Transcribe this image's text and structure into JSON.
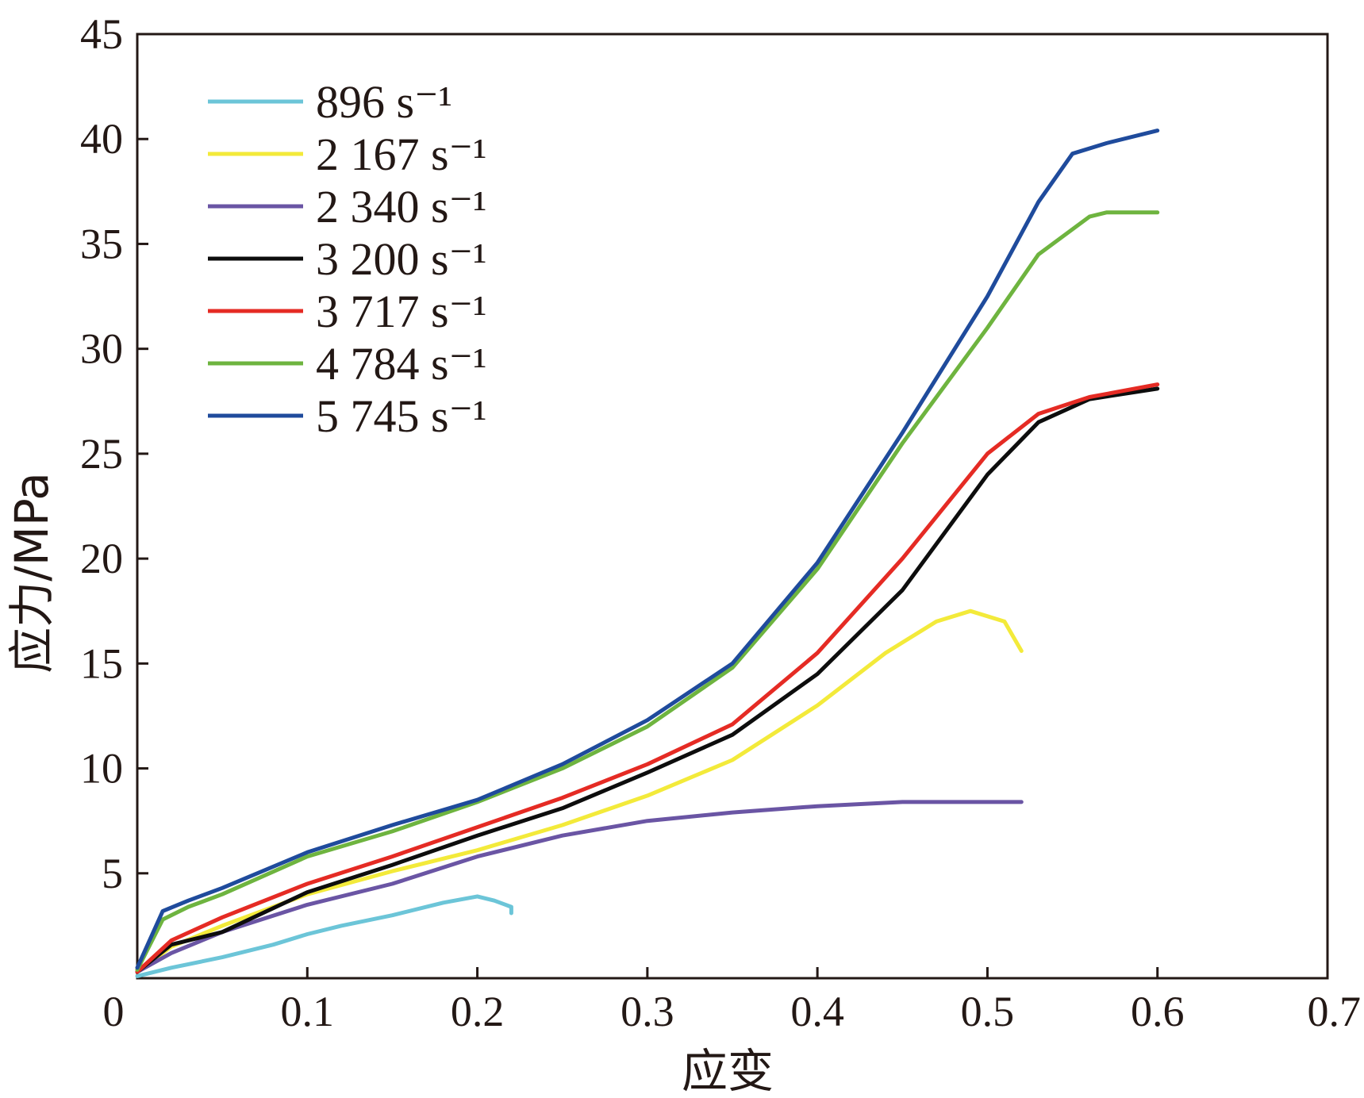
{
  "chart_data": {
    "type": "line",
    "title": "",
    "xlabel": "应变",
    "ylabel": "应力/MPa",
    "xlim": [
      0,
      0.7
    ],
    "ylim": [
      0,
      45
    ],
    "x_ticks": [
      "0",
      "0.1",
      "0.2",
      "0.3",
      "0.4",
      "0.5",
      "0.6",
      "0.7"
    ],
    "y_ticks": [
      "5",
      "10",
      "15",
      "20",
      "25",
      "30",
      "35",
      "40",
      "45"
    ],
    "grid": false,
    "legend_position": "top-left",
    "series": [
      {
        "name": "896 s⁻¹",
        "color": "#6cc5d8",
        "points": [
          [
            0,
            0.1
          ],
          [
            0.02,
            0.5
          ],
          [
            0.05,
            1.0
          ],
          [
            0.08,
            1.6
          ],
          [
            0.1,
            2.1
          ],
          [
            0.12,
            2.5
          ],
          [
            0.15,
            3.0
          ],
          [
            0.18,
            3.6
          ],
          [
            0.2,
            3.9
          ],
          [
            0.21,
            3.7
          ],
          [
            0.22,
            3.4
          ],
          [
            0.22,
            3.1
          ]
        ]
      },
      {
        "name": "2 167 s⁻¹",
        "color": "#f3ea3a",
        "points": [
          [
            0,
            0.3
          ],
          [
            0.02,
            1.5
          ],
          [
            0.05,
            2.5
          ],
          [
            0.1,
            4.0
          ],
          [
            0.15,
            5.1
          ],
          [
            0.2,
            6.1
          ],
          [
            0.25,
            7.3
          ],
          [
            0.3,
            8.7
          ],
          [
            0.35,
            10.4
          ],
          [
            0.4,
            13.0
          ],
          [
            0.44,
            15.5
          ],
          [
            0.47,
            17.0
          ],
          [
            0.49,
            17.5
          ],
          [
            0.51,
            17.0
          ],
          [
            0.52,
            15.6
          ]
        ]
      },
      {
        "name": "2 340 s⁻¹",
        "color": "#6a55a4",
        "points": [
          [
            0,
            0.3
          ],
          [
            0.02,
            1.2
          ],
          [
            0.05,
            2.2
          ],
          [
            0.1,
            3.5
          ],
          [
            0.15,
            4.5
          ],
          [
            0.2,
            5.8
          ],
          [
            0.25,
            6.8
          ],
          [
            0.3,
            7.5
          ],
          [
            0.35,
            7.9
          ],
          [
            0.4,
            8.2
          ],
          [
            0.45,
            8.4
          ],
          [
            0.5,
            8.4
          ],
          [
            0.52,
            8.4
          ]
        ]
      },
      {
        "name": "3 200 s⁻¹",
        "color": "#0d0d0d",
        "points": [
          [
            0,
            0.3
          ],
          [
            0.02,
            1.6
          ],
          [
            0.05,
            2.2
          ],
          [
            0.1,
            4.1
          ],
          [
            0.15,
            5.4
          ],
          [
            0.2,
            6.8
          ],
          [
            0.25,
            8.1
          ],
          [
            0.3,
            9.8
          ],
          [
            0.35,
            11.6
          ],
          [
            0.4,
            14.5
          ],
          [
            0.45,
            18.5
          ],
          [
            0.5,
            24.0
          ],
          [
            0.53,
            26.5
          ],
          [
            0.56,
            27.6
          ],
          [
            0.6,
            28.1
          ]
        ]
      },
      {
        "name": "3 717 s⁻¹",
        "color": "#e52b24",
        "points": [
          [
            0,
            0.3
          ],
          [
            0.02,
            1.8
          ],
          [
            0.05,
            2.9
          ],
          [
            0.1,
            4.5
          ],
          [
            0.15,
            5.8
          ],
          [
            0.2,
            7.2
          ],
          [
            0.25,
            8.6
          ],
          [
            0.3,
            10.2
          ],
          [
            0.35,
            12.1
          ],
          [
            0.4,
            15.5
          ],
          [
            0.45,
            20.0
          ],
          [
            0.5,
            25.0
          ],
          [
            0.53,
            26.9
          ],
          [
            0.56,
            27.7
          ],
          [
            0.6,
            28.3
          ]
        ]
      },
      {
        "name": "4 784 s⁻¹",
        "color": "#6eb43f",
        "points": [
          [
            0,
            0.4
          ],
          [
            0.015,
            2.8
          ],
          [
            0.03,
            3.4
          ],
          [
            0.05,
            4.0
          ],
          [
            0.1,
            5.8
          ],
          [
            0.15,
            7.0
          ],
          [
            0.2,
            8.4
          ],
          [
            0.25,
            10.0
          ],
          [
            0.3,
            12.0
          ],
          [
            0.35,
            14.8
          ],
          [
            0.4,
            19.5
          ],
          [
            0.45,
            25.5
          ],
          [
            0.5,
            31.0
          ],
          [
            0.53,
            34.5
          ],
          [
            0.56,
            36.3
          ],
          [
            0.57,
            36.5
          ],
          [
            0.6,
            36.5
          ]
        ]
      },
      {
        "name": "5 745 s⁻¹",
        "color": "#1f4b9c",
        "points": [
          [
            0,
            0.5
          ],
          [
            0.015,
            3.2
          ],
          [
            0.03,
            3.7
          ],
          [
            0.05,
            4.3
          ],
          [
            0.1,
            6.0
          ],
          [
            0.15,
            7.3
          ],
          [
            0.2,
            8.5
          ],
          [
            0.25,
            10.2
          ],
          [
            0.3,
            12.3
          ],
          [
            0.35,
            15.0
          ],
          [
            0.4,
            19.8
          ],
          [
            0.45,
            26.0
          ],
          [
            0.5,
            32.5
          ],
          [
            0.53,
            37.0
          ],
          [
            0.55,
            39.3
          ],
          [
            0.57,
            39.8
          ],
          [
            0.6,
            40.4
          ]
        ]
      }
    ]
  }
}
